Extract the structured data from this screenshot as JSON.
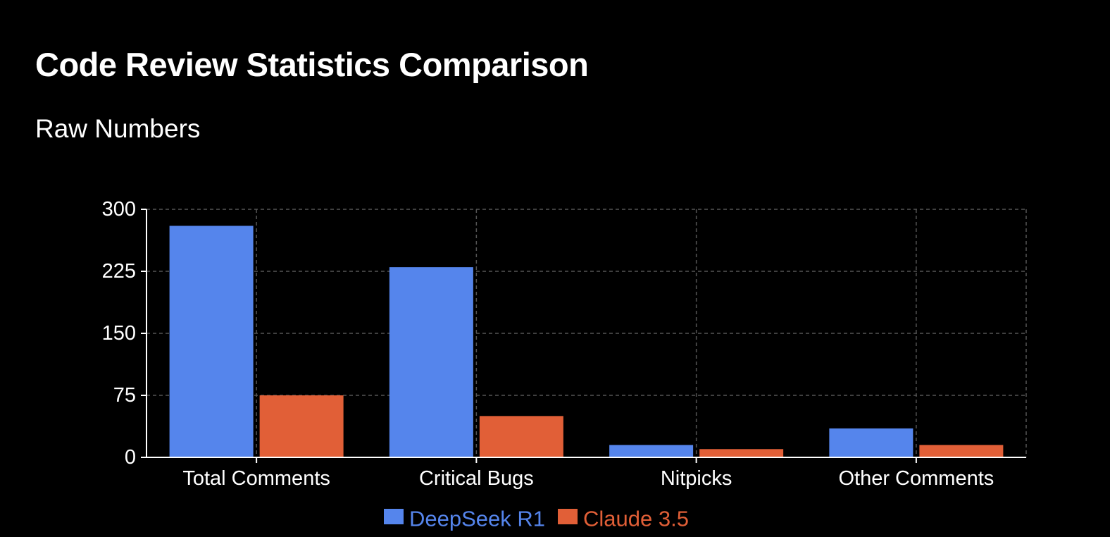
{
  "page": {
    "title": "Code Review Statistics Comparison",
    "subtitle": "Raw Numbers"
  },
  "chart_data": {
    "type": "bar",
    "categories": [
      "Total Comments",
      "Critical Bugs",
      "Nitpicks",
      "Other Comments"
    ],
    "series": [
      {
        "name": "DeepSeek R1",
        "color": "#5585EC",
        "values": [
          280,
          230,
          15,
          35
        ]
      },
      {
        "name": "Claude 3.5",
        "color": "#E15F37",
        "values": [
          75,
          50,
          10,
          15
        ]
      }
    ],
    "yticks": [
      0,
      75,
      150,
      225,
      300
    ],
    "ylim": [
      0,
      300
    ],
    "grid": true,
    "legend_position": "bottom-center"
  }
}
